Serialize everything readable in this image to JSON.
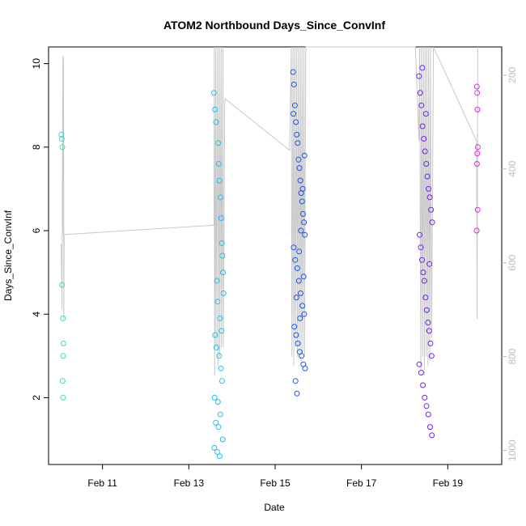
{
  "chart_data": {
    "type": "scatter",
    "title": "ATOM2 Northbound Days_Since_ConvInf",
    "xlabel": "Date",
    "ylabel": "Days_Since_ConvInf",
    "x_is_date": true,
    "xlim": [
      "2025-02-09T18:00",
      "2025-02-20T06:00"
    ],
    "ylim": [
      0.4,
      10.4
    ],
    "x_ticks": [
      {
        "x": "2025-02-11T00:00",
        "label": "Feb 11"
      },
      {
        "x": "2025-02-13T00:00",
        "label": "Feb 13"
      },
      {
        "x": "2025-02-15T00:00",
        "label": "Feb 15"
      },
      {
        "x": "2025-02-17T00:00",
        "label": "Feb 17"
      },
      {
        "x": "2025-02-19T00:00",
        "label": "Feb 19"
      }
    ],
    "y_ticks": [
      2,
      4,
      6,
      8,
      10
    ],
    "secondary_axis": {
      "side": "right",
      "color": "#bdbdbd",
      "reversed": true,
      "ylim": [
        1030,
        140
      ],
      "ticks": [
        200,
        400,
        600,
        800,
        1000
      ]
    },
    "grid": false,
    "marker": "open-circle",
    "color_scale": [
      "#40e0c8",
      "#20c0e8",
      "#1850f0",
      "#7020f0",
      "#e020e8"
    ],
    "series": [
      {
        "color": "#33e0c0",
        "x": [
          "2025-02-10T01:10",
          "2025-02-10T01:20",
          "2025-02-10T01:40",
          "2025-02-10T01:30",
          "2025-02-10T02:00",
          "2025-02-10T02:20",
          "2025-02-10T02:10",
          "2025-02-10T01:50",
          "2025-02-10T02:05"
        ],
        "y": [
          8.3,
          8.2,
          8.0,
          4.7,
          3.9,
          3.3,
          3.0,
          2.4,
          2.0
        ]
      },
      {
        "color": "#22bff0",
        "x": [
          "2025-02-13T14:00",
          "2025-02-13T14:30",
          "2025-02-13T15:10",
          "2025-02-13T16:20",
          "2025-02-13T16:40",
          "2025-02-13T17:00",
          "2025-02-13T17:40",
          "2025-02-13T18:00",
          "2025-02-13T18:20",
          "2025-02-13T18:40",
          "2025-02-13T19:00",
          "2025-02-13T19:20",
          "2025-02-13T15:40",
          "2025-02-13T16:00",
          "2025-02-13T17:20",
          "2025-02-13T18:10",
          "2025-02-13T14:40",
          "2025-02-13T15:20",
          "2025-02-13T16:50",
          "2025-02-13T17:50",
          "2025-02-13T18:30",
          "2025-02-13T14:20",
          "2025-02-13T16:10",
          "2025-02-13T17:30",
          "2025-02-13T15:00",
          "2025-02-13T16:30",
          "2025-02-13T18:50",
          "2025-02-13T14:10",
          "2025-02-13T15:50",
          "2025-02-13T17:10"
        ],
        "y": [
          9.3,
          8.9,
          8.6,
          8.1,
          7.6,
          7.2,
          6.8,
          6.3,
          5.7,
          5.4,
          5.0,
          4.5,
          4.8,
          4.3,
          3.9,
          3.6,
          3.5,
          3.2,
          3.0,
          2.7,
          2.4,
          2.0,
          1.9,
          1.6,
          1.4,
          1.3,
          1.0,
          0.8,
          0.7,
          0.6
        ]
      },
      {
        "color": "#1a55f0",
        "x": [
          "2025-02-15T10:00",
          "2025-02-15T10:30",
          "2025-02-15T11:00",
          "2025-02-15T11:30",
          "2025-02-15T12:00",
          "2025-02-15T12:30",
          "2025-02-15T13:00",
          "2025-02-15T13:30",
          "2025-02-15T14:00",
          "2025-02-15T14:30",
          "2025-02-15T15:00",
          "2025-02-15T15:30",
          "2025-02-15T16:00",
          "2025-02-15T16:30",
          "2025-02-15T10:20",
          "2025-02-15T11:10",
          "2025-02-15T12:20",
          "2025-02-15T13:10",
          "2025-02-15T14:10",
          "2025-02-15T15:10",
          "2025-02-15T16:10",
          "2025-02-15T10:40",
          "2025-02-15T11:40",
          "2025-02-15T12:40",
          "2025-02-15T13:40",
          "2025-02-15T14:40",
          "2025-02-15T15:40",
          "2025-02-15T16:40",
          "2025-02-15T11:20",
          "2025-02-15T12:10",
          "2025-02-15T13:20",
          "2025-02-15T14:20",
          "2025-02-15T15:20",
          "2025-02-15T16:20",
          "2025-02-15T10:10",
          "2025-02-15T11:50",
          "2025-02-15T13:50",
          "2025-02-15T15:50"
        ],
        "y": [
          9.8,
          9.5,
          9.0,
          8.6,
          8.3,
          8.1,
          7.7,
          7.5,
          7.2,
          6.9,
          6.7,
          6.4,
          6.2,
          5.9,
          5.6,
          5.3,
          5.1,
          4.8,
          4.5,
          4.2,
          4.0,
          3.7,
          3.5,
          3.3,
          3.1,
          3.0,
          2.8,
          2.7,
          2.4,
          2.1,
          5.5,
          6.0,
          7.0,
          7.8,
          8.8,
          4.4,
          3.9,
          4.9
        ]
      },
      {
        "color": "#7022f0",
        "x": [
          "2025-02-18T08:00",
          "2025-02-18T08:40",
          "2025-02-18T09:20",
          "2025-02-18T10:00",
          "2025-02-18T10:40",
          "2025-02-18T11:20",
          "2025-02-18T12:00",
          "2025-02-18T12:40",
          "2025-02-18T13:20",
          "2025-02-18T14:00",
          "2025-02-18T14:40",
          "2025-02-18T15:20",
          "2025-02-18T08:20",
          "2025-02-18T09:00",
          "2025-02-18T09:40",
          "2025-02-18T10:20",
          "2025-02-18T11:00",
          "2025-02-18T11:40",
          "2025-02-18T12:20",
          "2025-02-18T13:00",
          "2025-02-18T13:40",
          "2025-02-18T14:20",
          "2025-02-18T15:00",
          "2025-02-18T08:10",
          "2025-02-18T09:10",
          "2025-02-18T10:10",
          "2025-02-18T11:10",
          "2025-02-18T12:10",
          "2025-02-18T13:10",
          "2025-02-18T14:10",
          "2025-02-18T15:10",
          "2025-02-18T09:50",
          "2025-02-18T11:50",
          "2025-02-18T13:50"
        ],
        "y": [
          9.7,
          9.3,
          9.0,
          8.5,
          8.2,
          7.9,
          7.6,
          7.3,
          7.0,
          6.8,
          6.5,
          6.2,
          5.9,
          5.6,
          5.3,
          5.0,
          4.8,
          4.4,
          4.1,
          3.8,
          3.6,
          3.3,
          3.0,
          2.8,
          2.6,
          2.3,
          2.0,
          1.8,
          1.6,
          1.3,
          1.1,
          9.9,
          8.8,
          5.2
        ]
      },
      {
        "color": "#e028e0",
        "x": [
          "2025-02-19T16:10",
          "2025-02-19T16:20",
          "2025-02-19T16:30",
          "2025-02-19T16:40",
          "2025-02-19T16:25",
          "2025-02-19T16:15",
          "2025-02-19T16:35",
          "2025-02-19T16:05"
        ],
        "y": [
          9.45,
          9.3,
          8.9,
          8.0,
          7.85,
          7.6,
          6.5,
          6.0
        ]
      }
    ],
    "line_series": {
      "color": "#c8c8c8",
      "axis": "secondary",
      "x": [
        "2025-02-10T01:00",
        "2025-02-10T01:30",
        "2025-02-10T01:40",
        "2025-02-10T02:00",
        "2025-02-10T02:10",
        "2025-02-10T02:20",
        "2025-02-10T02:30",
        "2025-02-10T02:40",
        "2025-02-13T14:00",
        "2025-02-13T14:10",
        "2025-02-13T14:20",
        "2025-02-13T15:00",
        "2025-02-13T15:10",
        "2025-02-13T16:00",
        "2025-02-13T16:10",
        "2025-02-13T17:00",
        "2025-02-13T17:10",
        "2025-02-13T18:00",
        "2025-02-13T18:10",
        "2025-02-13T19:00",
        "2025-02-13T19:10",
        "2025-02-13T20:00",
        "2025-02-15T08:00",
        "2025-02-15T09:00",
        "2025-02-15T09:20",
        "2025-02-15T10:00",
        "2025-02-15T10:20",
        "2025-02-15T11:00",
        "2025-02-15T11:20",
        "2025-02-15T12:00",
        "2025-02-15T12:20",
        "2025-02-15T13:00",
        "2025-02-15T13:20",
        "2025-02-15T14:00",
        "2025-02-15T14:20",
        "2025-02-15T15:00",
        "2025-02-15T15:20",
        "2025-02-15T16:00",
        "2025-02-15T16:20",
        "2025-02-15T17:00",
        "2025-02-16T20:00",
        "2025-02-18T06:00",
        "2025-02-18T08:00",
        "2025-02-18T08:20",
        "2025-02-18T09:00",
        "2025-02-18T09:20",
        "2025-02-18T10:00",
        "2025-02-18T10:20",
        "2025-02-18T11:00",
        "2025-02-18T11:20",
        "2025-02-18T12:00",
        "2025-02-18T12:20",
        "2025-02-18T13:00",
        "2025-02-18T13:20",
        "2025-02-18T14:00",
        "2025-02-18T14:20",
        "2025-02-18T15:00",
        "2025-02-18T16:00",
        "2025-02-19T16:00",
        "2025-02-19T16:20",
        "2025-02-19T16:40"
      ],
      "y": [
        560,
        700,
        440,
        160,
        540,
        160,
        720,
        540,
        520,
        140,
        840,
        140,
        780,
        140,
        820,
        140,
        800,
        140,
        780,
        140,
        780,
        250,
        360,
        140,
        800,
        140,
        820,
        140,
        780,
        140,
        800,
        140,
        790,
        140,
        810,
        140,
        790,
        140,
        800,
        140,
        140,
        140,
        340,
        140,
        830,
        140,
        800,
        140,
        840,
        140,
        800,
        140,
        820,
        140,
        810,
        140,
        760,
        140,
        340,
        720,
        140
      ]
    }
  }
}
